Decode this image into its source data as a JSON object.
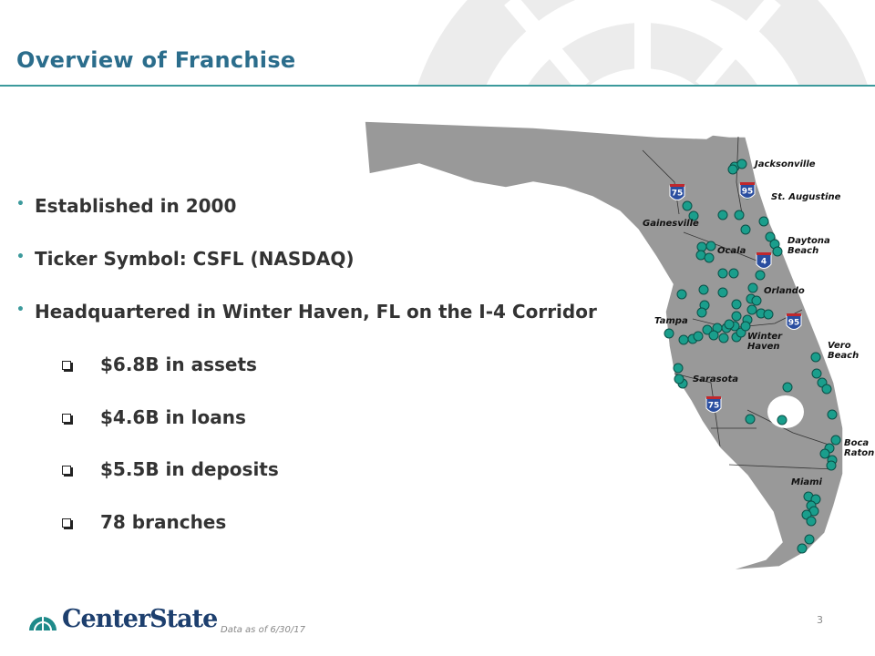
{
  "header": {
    "title": "Overview of Franchise"
  },
  "bullets": [
    "Established in 2000",
    "Ticker Symbol:  CSFL (NASDAQ)",
    "Headquartered in Winter Haven, FL on the I-4 Corridor"
  ],
  "sub_bullets": [
    "$6.8B in assets",
    "$4.6B in loans",
    "$5.5B in deposits",
    " 78 branches"
  ],
  "map": {
    "cities": [
      "Jacksonville",
      "St. Augustine",
      "Gainesville",
      "Daytona Beach",
      "Ocala",
      "Orlando",
      "Tampa",
      "Winter Haven",
      "Vero Beach",
      "Sarasota",
      "Boca Raton",
      "Miami"
    ],
    "interstates": [
      "75",
      "95",
      "4",
      "95",
      "75"
    ]
  },
  "footer": {
    "logo": "CenterState",
    "note": "Data as of 6/30/17",
    "page_number": "3"
  }
}
